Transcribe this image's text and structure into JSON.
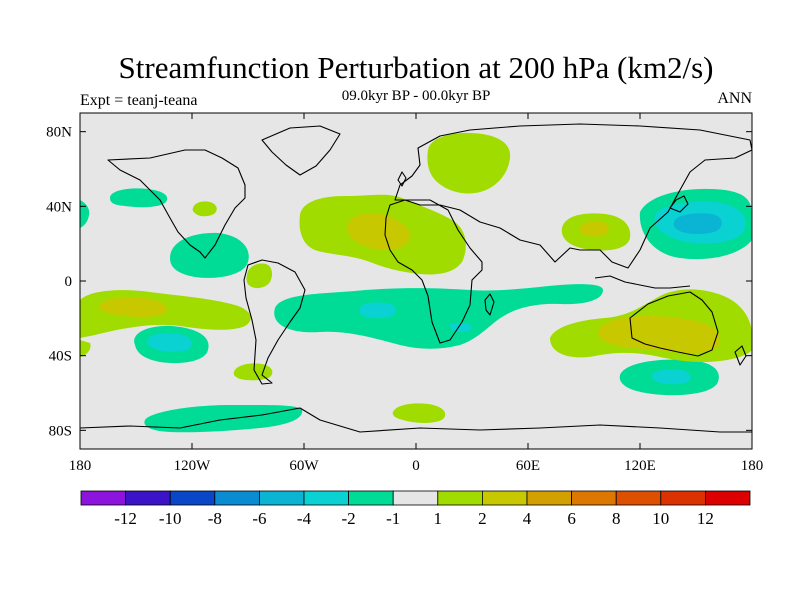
{
  "title": "Streamfunction Perturbation at 200 hPa (km2/s)",
  "left_label": "Expt = teanj-teana",
  "center_label": "09.0kyr BP - 00.0kyr BP",
  "right_label": "ANN",
  "map": {
    "lon_range": [
      -180,
      180
    ],
    "lat_range": [
      -90,
      90
    ],
    "lat_ticks": [
      {
        "value": 80,
        "label": "80N"
      },
      {
        "value": 40,
        "label": "40N"
      },
      {
        "value": 0,
        "label": "0"
      },
      {
        "value": -40,
        "label": "40S"
      },
      {
        "value": -80,
        "label": "80S"
      }
    ],
    "lon_ticks": [
      {
        "value": -180,
        "label": "180"
      },
      {
        "value": -120,
        "label": "120W"
      },
      {
        "value": -60,
        "label": "60W"
      },
      {
        "value": 0,
        "label": "0"
      },
      {
        "value": 60,
        "label": "60E"
      },
      {
        "value": 120,
        "label": "120E"
      },
      {
        "value": 180,
        "label": "180"
      }
    ],
    "background_color": "#e6e6e6"
  },
  "colorbar": {
    "colors": [
      "#8c14dc",
      "#3c14c8",
      "#0a46c8",
      "#0a8cd2",
      "#0ab4d2",
      "#0ad2d2",
      "#00dc96",
      "#e6e6e6",
      "#a0dc00",
      "#c8c800",
      "#d2a000",
      "#dc7800",
      "#dc5000",
      "#dc3200",
      "#dc0000"
    ],
    "labels": [
      "-12",
      "-10",
      "-8",
      "-6",
      "-4",
      "-2",
      "-1",
      "1",
      "2",
      "4",
      "6",
      "8",
      "10",
      "12"
    ]
  },
  "chart_data": {
    "type": "heatmap",
    "title": "Streamfunction Perturbation at 200 hPa (km2/s)",
    "subtitle": "09.0kyr BP - 00.0kyr BP",
    "units": "km2/s",
    "levels": [
      -12,
      -10,
      -8,
      -6,
      -4,
      -2,
      -1,
      1,
      2,
      4,
      6,
      8,
      10,
      12
    ],
    "features": [
      {
        "name": "N Atlantic / N Africa high",
        "lon_range": [
          -60,
          27
        ],
        "lat_range": [
          5,
          45
        ],
        "level_range": [
          1,
          4
        ]
      },
      {
        "name": "Scandinavia / Arctic high",
        "lon_range": [
          5,
          55
        ],
        "lat_range": [
          45,
          80
        ],
        "level_range": [
          1,
          2
        ]
      },
      {
        "name": "NW Pacific low",
        "lon_range": [
          120,
          180
        ],
        "lat_range": [
          17,
          47
        ],
        "level_range": [
          -4,
          -1
        ]
      },
      {
        "name": "South Asia high",
        "lon_range": [
          80,
          118
        ],
        "lat_range": [
          10,
          45
        ],
        "level_range": [
          1,
          4
        ]
      },
      {
        "name": "Southern subtropical low belt",
        "lon_range": [
          -85,
          100
        ],
        "lat_range": [
          -45,
          -5
        ],
        "level_range": [
          -4,
          -1
        ]
      },
      {
        "name": "Australia high",
        "lon_range": [
          95,
          180
        ],
        "lat_range": [
          -48,
          -8
        ],
        "level_range": [
          1,
          4
        ]
      },
      {
        "name": "S Pacific high",
        "lon_range": [
          -180,
          -95
        ],
        "lat_range": [
          -30,
          -5
        ],
        "level_range": [
          1,
          4
        ]
      },
      {
        "name": "S Pacific low",
        "lon_range": [
          -165,
          -115
        ],
        "lat_range": [
          -45,
          -25
        ],
        "level_range": [
          -4,
          -1
        ]
      },
      {
        "name": "Southern Ocean low",
        "lon_range": [
          -145,
          -60
        ],
        "lat_range": [
          -82,
          -70
        ],
        "level_range": [
          -2,
          -1
        ]
      },
      {
        "name": "S Indian Ocean low",
        "lon_range": [
          110,
          175
        ],
        "lat_range": [
          -65,
          -45
        ],
        "level_range": [
          -4,
          -1
        ]
      }
    ]
  }
}
